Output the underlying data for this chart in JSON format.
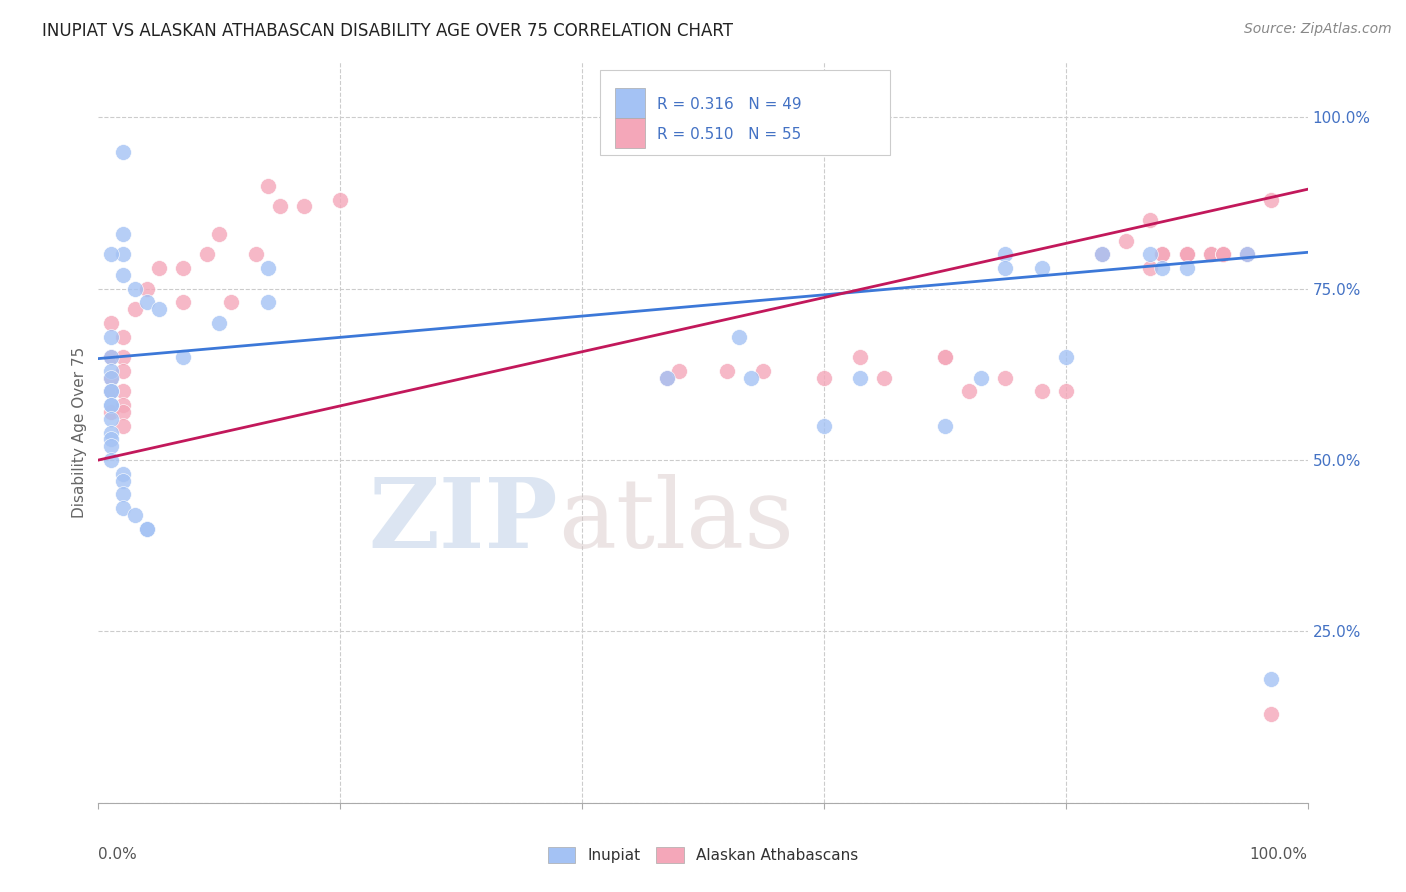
{
  "title": "INUPIAT VS ALASKAN ATHABASCAN DISABILITY AGE OVER 75 CORRELATION CHART",
  "source": "Source: ZipAtlas.com",
  "ylabel": "Disability Age Over 75",
  "legend_label1": "Inupiat",
  "legend_label2": "Alaskan Athabascans",
  "R1": "0.316",
  "N1": "49",
  "R2": "0.510",
  "N2": "55",
  "watermark_zip": "ZIP",
  "watermark_atlas": "atlas",
  "blue_color": "#a4c2f4",
  "pink_color": "#f4a7b9",
  "blue_line_color": "#3c78d8",
  "pink_line_color": "#c2185b",
  "axis_color": "#4472c4",
  "inupiat_x": [
    0.02,
    0.02,
    0.02,
    0.01,
    0.02,
    0.03,
    0.04,
    0.05,
    0.01,
    0.01,
    0.01,
    0.01,
    0.01,
    0.01,
    0.01,
    0.01,
    0.01,
    0.01,
    0.01,
    0.01,
    0.01,
    0.02,
    0.02,
    0.02,
    0.02,
    0.03,
    0.04,
    0.04,
    0.07,
    0.1,
    0.14,
    0.14,
    0.47,
    0.53,
    0.54,
    0.6,
    0.63,
    0.7,
    0.73,
    0.75,
    0.75,
    0.78,
    0.8,
    0.83,
    0.87,
    0.88,
    0.9,
    0.95,
    0.97
  ],
  "inupiat_y": [
    0.95,
    0.83,
    0.8,
    0.8,
    0.77,
    0.75,
    0.73,
    0.72,
    0.68,
    0.65,
    0.63,
    0.62,
    0.6,
    0.6,
    0.58,
    0.58,
    0.56,
    0.54,
    0.53,
    0.52,
    0.5,
    0.48,
    0.47,
    0.45,
    0.43,
    0.42,
    0.4,
    0.4,
    0.65,
    0.7,
    0.78,
    0.73,
    0.62,
    0.68,
    0.62,
    0.55,
    0.62,
    0.55,
    0.62,
    0.8,
    0.78,
    0.78,
    0.65,
    0.8,
    0.8,
    0.78,
    0.78,
    0.8,
    0.18
  ],
  "athabascan_x": [
    0.01,
    0.01,
    0.01,
    0.01,
    0.01,
    0.02,
    0.02,
    0.02,
    0.02,
    0.02,
    0.02,
    0.02,
    0.03,
    0.04,
    0.05,
    0.07,
    0.07,
    0.09,
    0.1,
    0.11,
    0.13,
    0.14,
    0.15,
    0.17,
    0.2,
    0.47,
    0.48,
    0.52,
    0.55,
    0.6,
    0.63,
    0.65,
    0.7,
    0.7,
    0.72,
    0.75,
    0.78,
    0.8,
    0.83,
    0.85,
    0.87,
    0.87,
    0.88,
    0.88,
    0.9,
    0.9,
    0.9,
    0.92,
    0.92,
    0.93,
    0.93,
    0.93,
    0.95,
    0.97,
    0.97
  ],
  "athabascan_y": [
    0.7,
    0.65,
    0.62,
    0.6,
    0.57,
    0.68,
    0.65,
    0.63,
    0.6,
    0.58,
    0.57,
    0.55,
    0.72,
    0.75,
    0.78,
    0.78,
    0.73,
    0.8,
    0.83,
    0.73,
    0.8,
    0.9,
    0.87,
    0.87,
    0.88,
    0.62,
    0.63,
    0.63,
    0.63,
    0.62,
    0.65,
    0.62,
    0.65,
    0.65,
    0.6,
    0.62,
    0.6,
    0.6,
    0.8,
    0.82,
    0.85,
    0.78,
    0.8,
    0.8,
    0.8,
    0.8,
    0.8,
    0.8,
    0.8,
    0.8,
    0.8,
    0.8,
    0.8,
    0.88,
    0.13
  ],
  "xlim": [
    0.0,
    1.0
  ],
  "ylim": [
    0.0,
    1.08
  ],
  "ytick_positions": [
    0.0,
    0.25,
    0.5,
    0.75,
    1.0
  ],
  "ytick_labels": [
    "",
    "25.0%",
    "50.0%",
    "75.0%",
    "100.0%"
  ],
  "title_fontsize": 12,
  "source_fontsize": 10,
  "tick_fontsize": 11
}
